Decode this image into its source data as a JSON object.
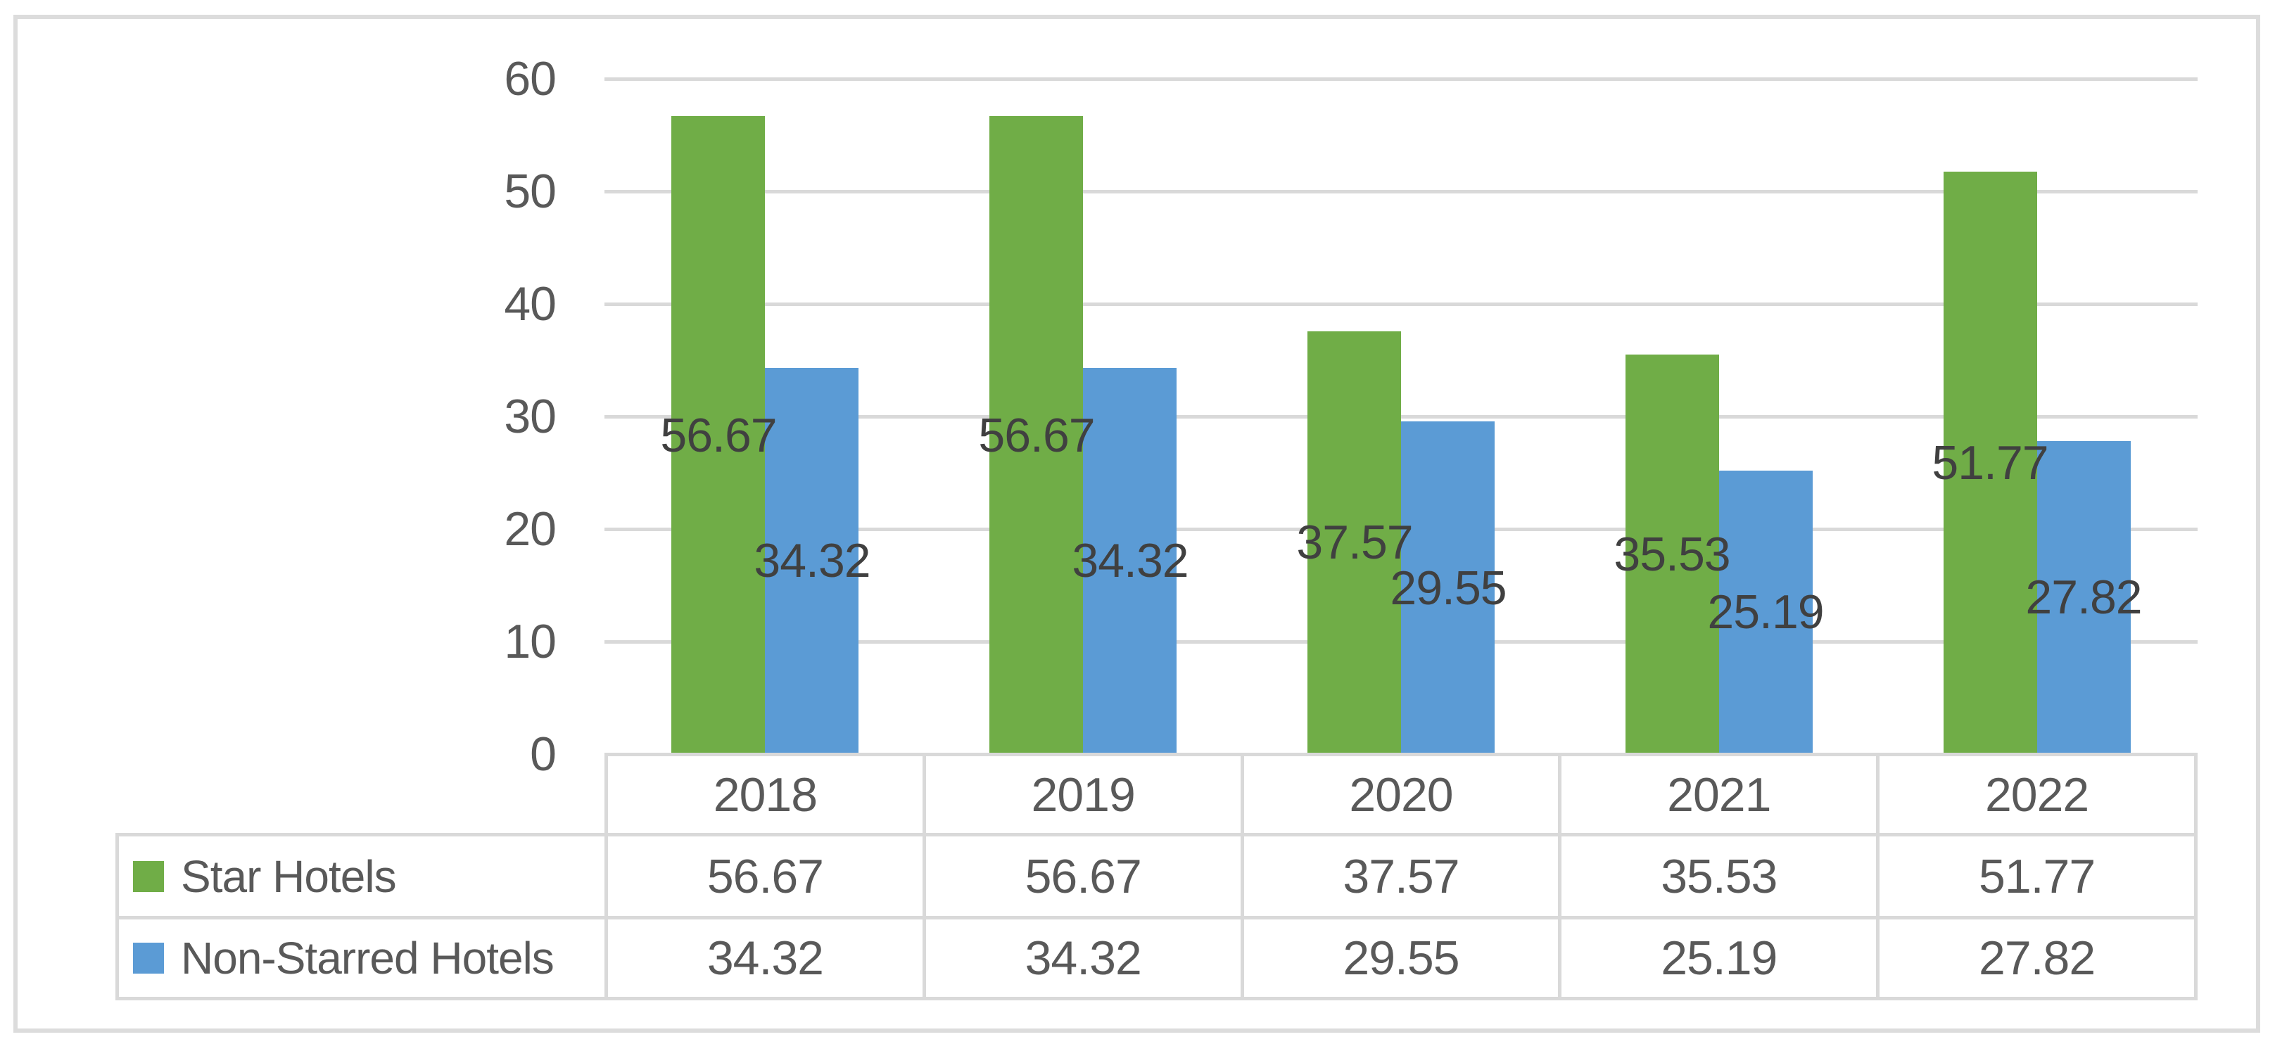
{
  "chart_data": {
    "type": "bar",
    "title": "",
    "xlabel": "",
    "ylabel": "",
    "categories": [
      "2018",
      "2019",
      "2020",
      "2021",
      "2022"
    ],
    "series": [
      {
        "name": "Star Hotels",
        "color": "#70AD47",
        "values": [
          56.67,
          56.67,
          37.57,
          35.53,
          51.77
        ],
        "value_labels": [
          "56.67",
          "56.67",
          "37.57",
          "35.53",
          "51.77"
        ]
      },
      {
        "name": "Non-Starred Hotels",
        "color": "#5B9BD5",
        "values": [
          34.32,
          34.32,
          29.55,
          25.19,
          27.82
        ],
        "value_labels": [
          "34.32",
          "34.32",
          "29.55",
          "25.19",
          "27.82"
        ]
      }
    ],
    "ylim": [
      0,
      60
    ],
    "yticks": [
      0,
      10,
      20,
      30,
      40,
      50,
      60
    ],
    "ytick_labels": [
      "0",
      "10",
      "20",
      "30",
      "40",
      "50",
      "60"
    ],
    "grid": true,
    "legend_position": "data-table-left-column",
    "data_labels_position": "inside-center",
    "styles": {
      "bar_green": "#70AD47",
      "bar_blue": "#5B9BD5",
      "gridline": "#D9D9D9",
      "table_border": "#D9D9D9",
      "frame_border": "#DCDCDC",
      "axis_text": "#595959",
      "table_text": "#595959",
      "data_label_text": "#404040",
      "background": "#FFFFFF"
    }
  }
}
